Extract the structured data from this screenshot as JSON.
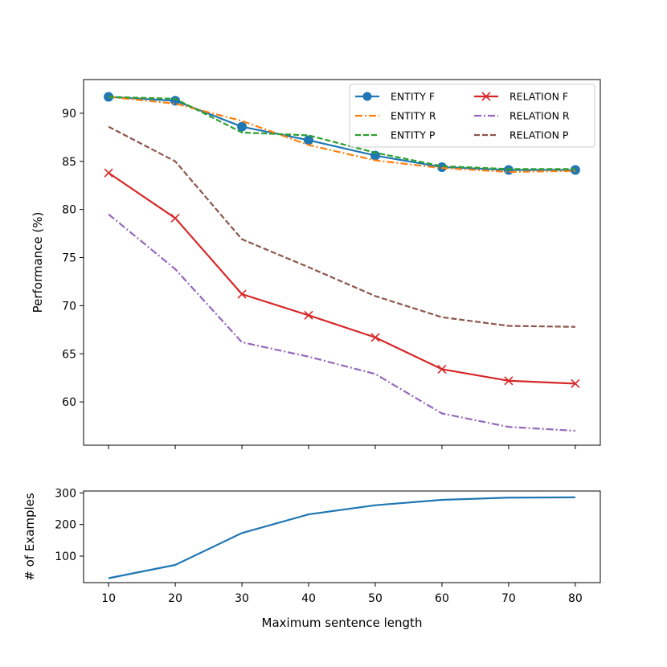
{
  "chart_data": [
    {
      "type": "line",
      "ylabel": "Performance (%)",
      "xlim": [
        6.25,
        83.75
      ],
      "ylim": [
        55.5,
        93.5
      ],
      "x": [
        10,
        20,
        30,
        40,
        50,
        60,
        70,
        80
      ],
      "xtick_labels": [
        "10",
        "20",
        "30",
        "40",
        "50",
        "60",
        "70",
        "80"
      ],
      "yticks": [
        60,
        65,
        70,
        75,
        80,
        85,
        90
      ],
      "ytick_labels": [
        "60",
        "65",
        "70",
        "75",
        "80",
        "85",
        "90"
      ],
      "grid": false,
      "legend_placement": "upper right",
      "series": [
        {
          "name": "ENTITY F",
          "color": "#1f77b4",
          "style": "solid",
          "marker": "circle",
          "values": [
            91.7,
            91.3,
            88.6,
            87.2,
            85.6,
            84.4,
            84.1,
            84.1
          ]
        },
        {
          "name": "ENTITY R",
          "color": "#ff7f0e",
          "style": "dashdot",
          "marker": "none",
          "values": [
            91.7,
            91.0,
            89.2,
            86.7,
            85.1,
            84.3,
            83.9,
            84.0
          ]
        },
        {
          "name": "ENTITY P",
          "color": "#2ca02c",
          "style": "dashed",
          "marker": "none",
          "values": [
            91.7,
            91.5,
            88.0,
            87.7,
            85.9,
            84.5,
            84.2,
            84.2
          ]
        },
        {
          "name": "RELATION F",
          "color": "#d62728",
          "style": "solid",
          "marker": "x",
          "values": [
            83.8,
            79.1,
            71.2,
            69.0,
            66.7,
            63.4,
            62.2,
            61.9
          ]
        },
        {
          "name": "RELATION R",
          "color": "#9467bd",
          "style": "dashdot",
          "marker": "none",
          "values": [
            79.5,
            73.8,
            66.2,
            64.7,
            62.9,
            58.8,
            57.4,
            57.0
          ]
        },
        {
          "name": "RELATION P",
          "color": "#8c564b",
          "style": "dashed",
          "marker": "none",
          "values": [
            88.6,
            85.0,
            76.9,
            74.0,
            71.0,
            68.8,
            67.9,
            67.8
          ]
        }
      ]
    },
    {
      "type": "line",
      "xlabel": "Maximum sentence length",
      "ylabel": "# of Examples",
      "xlim": [
        6.25,
        83.75
      ],
      "ylim": [
        16,
        306
      ],
      "x": [
        10,
        20,
        30,
        40,
        50,
        60,
        70,
        80
      ],
      "xtick_labels": [
        "10",
        "20",
        "30",
        "40",
        "50",
        "60",
        "70",
        "80"
      ],
      "yticks": [
        100,
        200,
        300
      ],
      "ytick_labels": [
        "100",
        "200",
        "300"
      ],
      "grid": false,
      "series": [
        {
          "color": "#1f77b4",
          "style": "solid",
          "marker": "none",
          "values": [
            30,
            72,
            173,
            232,
            261,
            278,
            285,
            286
          ]
        }
      ]
    }
  ]
}
